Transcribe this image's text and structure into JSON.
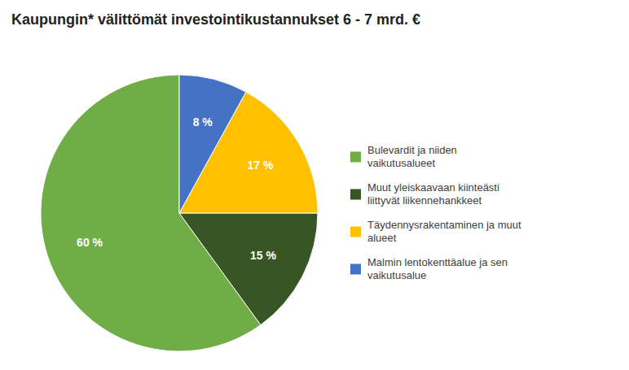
{
  "chart_data": {
    "type": "pie",
    "title": "Kaupungin* välittömät investointikustannukset 6 - 7 mrd. €",
    "categories": [
      "Bulevardit ja niiden\nvaikutusalueet",
      "Muut yleiskaavaan kiinteästi\nliittyvät liikennehankkeet",
      "Täydennysrakentaminen ja muut\nalueet",
      "Malmin lentokenttäalue ja sen\nvaikutusalue"
    ],
    "values": [
      60,
      15,
      17,
      8
    ],
    "value_labels": [
      "60 %",
      "15 %",
      "17 %",
      "8 %"
    ],
    "colors": [
      "#70ad47",
      "#375623",
      "#ffc000",
      "#4472c4"
    ],
    "data_labels": true,
    "legend": "right"
  }
}
